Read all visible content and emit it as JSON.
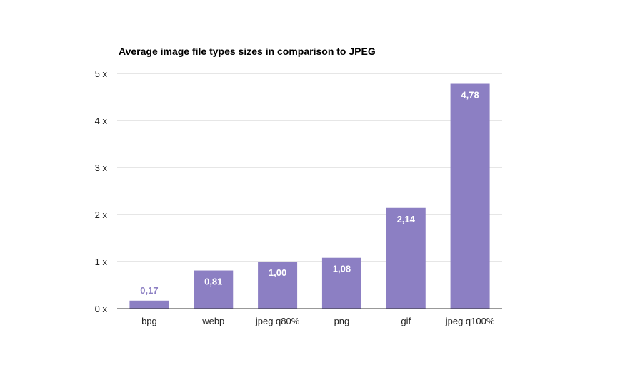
{
  "chart_data": {
    "type": "bar",
    "title": "Average image file types sizes in comparison to JPEG",
    "categories": [
      "bpg",
      "webp",
      "jpeg q80%",
      "png",
      "gif",
      "jpeg q100%"
    ],
    "values": [
      0.17,
      0.81,
      1.0,
      1.08,
      2.14,
      4.78
    ],
    "data_labels": [
      "0,17",
      "0,81",
      "1,00",
      "1,08",
      "2,14",
      "4,78"
    ],
    "yticks": [
      0,
      1,
      2,
      3,
      4,
      5
    ],
    "ytick_labels": [
      "0 x",
      "1 x",
      "2 x",
      "3 x",
      "4 x",
      "5 x"
    ],
    "ylim": [
      0,
      5
    ],
    "xlabel": "",
    "ylabel": "",
    "grid": true,
    "legend": "none",
    "colors": {
      "bar": "#8c7fc3",
      "label_inside": "#ffffff",
      "label_outside": "#8c7fc3",
      "grid": "#cccccc",
      "axis": "#333333"
    }
  }
}
